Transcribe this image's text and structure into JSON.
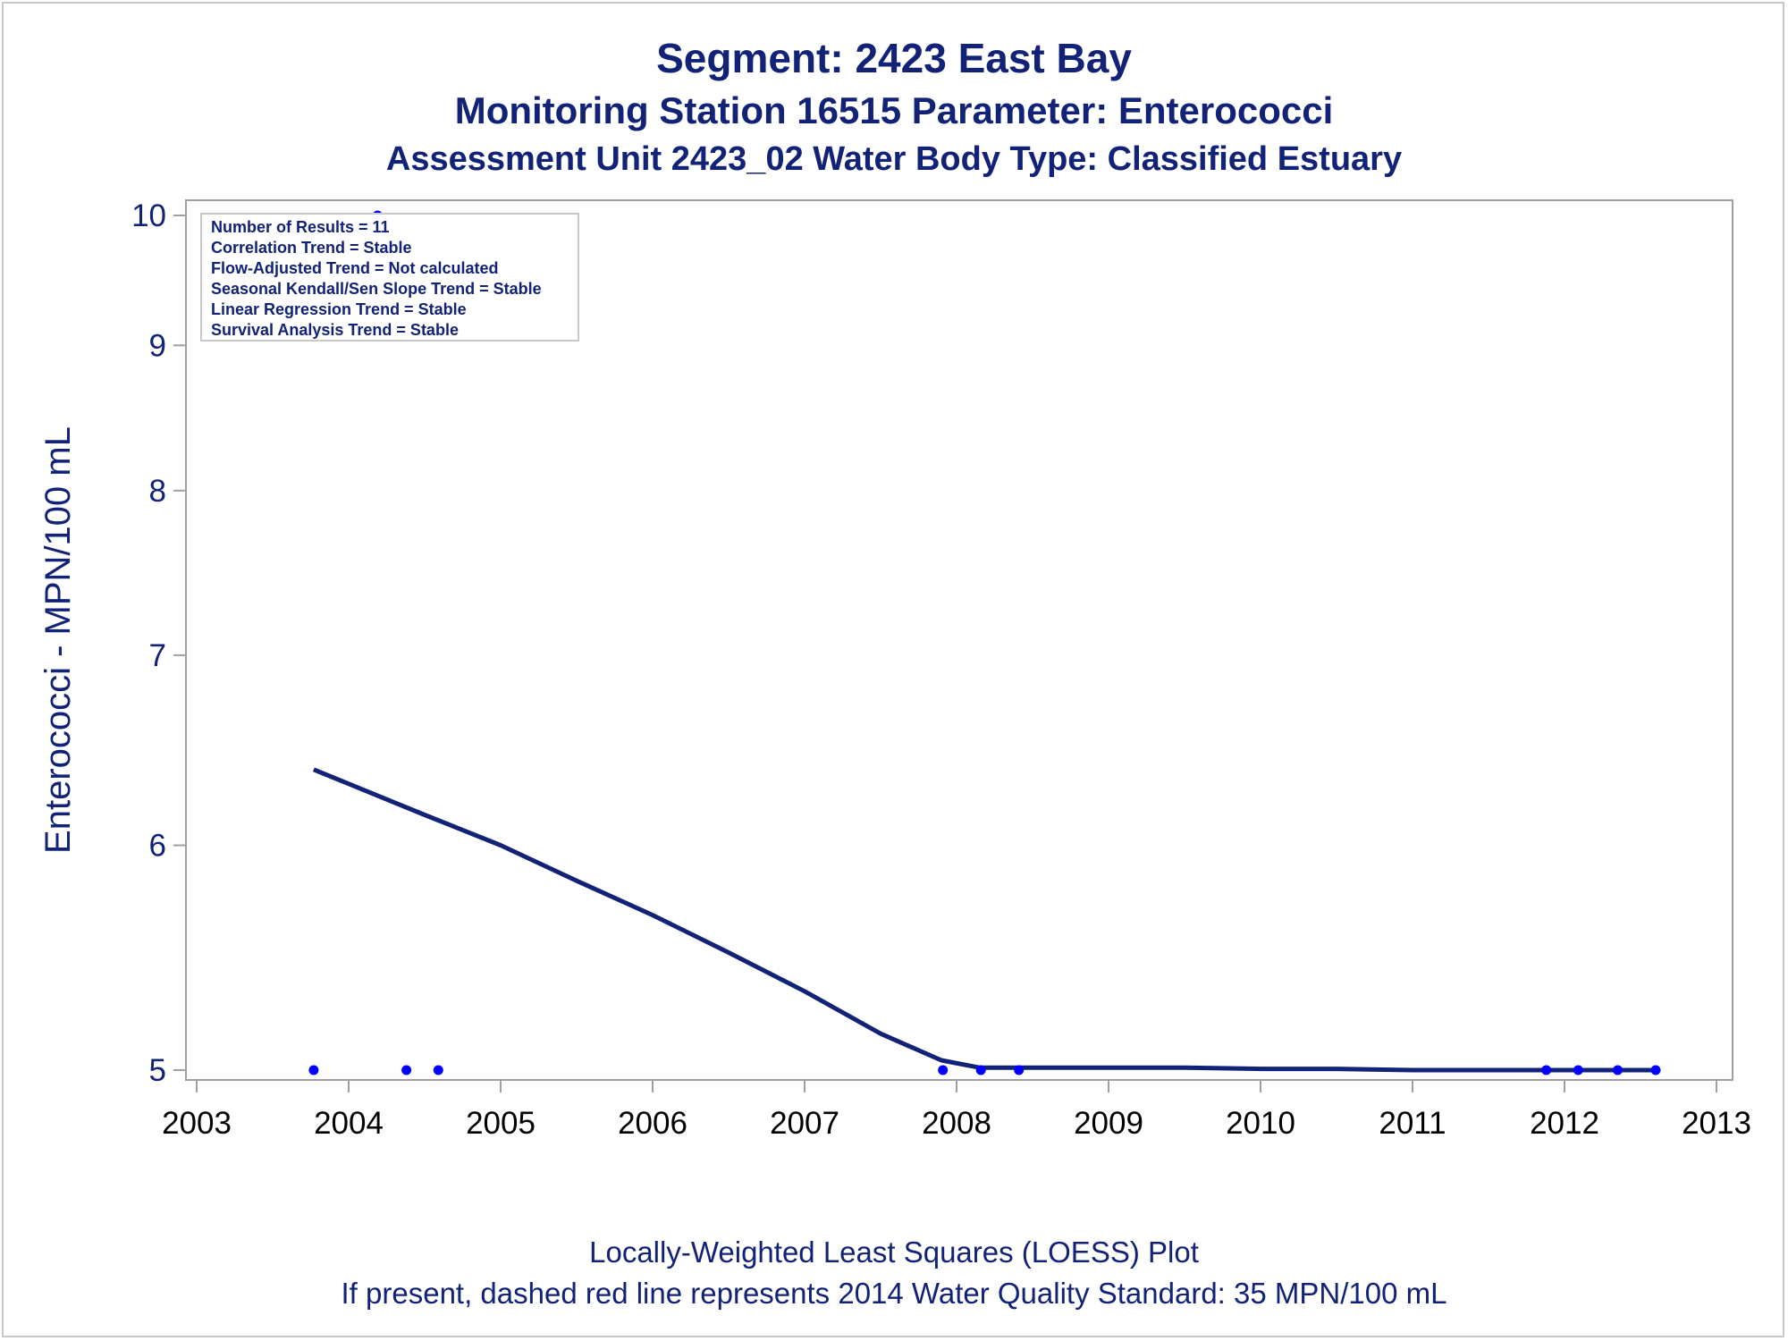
{
  "titles": {
    "line1": "Segment: 2423  East Bay",
    "line2": "Monitoring Station 16515 Parameter: Enterococci",
    "line3": "Assessment Unit 2423_02   Water Body Type: Classified Estuary"
  },
  "footnotes": {
    "line1": "Locally-Weighted Least Squares (LOESS) Plot",
    "line2": "If present, dashed red line represents 2014 Water Quality Standard: 35 MPN/100 mL"
  },
  "inset": [
    "Number of Results = 11",
    "Correlation Trend = Stable",
    "Flow-Adjusted Trend = Not calculated",
    "Seasonal Kendall/Sen Slope Trend = Stable",
    "Linear Regression Trend = Stable",
    "Survival Analysis Trend = Stable"
  ],
  "chart_data": {
    "type": "scatter",
    "title": "Segment: 2423  East Bay",
    "xlabel": "",
    "ylabel": "Enterococci - MPN/100 mL",
    "y_scale": "log",
    "xlim": [
      2003,
      2013
    ],
    "ylim": [
      4.93,
      10
    ],
    "x_ticks": [
      2003,
      2004,
      2005,
      2006,
      2007,
      2008,
      2009,
      2010,
      2011,
      2012,
      2013
    ],
    "y_ticks": [
      5,
      6,
      7,
      8,
      9,
      10
    ],
    "series": [
      {
        "kind": "points",
        "color": "#0000ff",
        "x": [
          2003.77,
          2004.19,
          2004.38,
          2004.59,
          2007.91,
          2008.16,
          2008.41,
          2011.88,
          2012.09,
          2012.35,
          2012.6
        ],
        "y": [
          5,
          10,
          5,
          5,
          5,
          5,
          5,
          5,
          5,
          5,
          5
        ]
      },
      {
        "kind": "line",
        "color": "#112277",
        "x": [
          2003.77,
          2004.5,
          2005.0,
          2005.5,
          2006.0,
          2006.5,
          2007.0,
          2007.5,
          2007.9,
          2008.15,
          2008.5,
          2009.0,
          2009.5,
          2010.0,
          2010.5,
          2011.0,
          2011.5,
          2012.0,
          2012.6
        ],
        "y": [
          6.38,
          6.15,
          6.0,
          5.83,
          5.67,
          5.5,
          5.33,
          5.15,
          5.04,
          5.01,
          5.01,
          5.01,
          5.01,
          5.005,
          5.005,
          5.0,
          5.0,
          5.0,
          5.0
        ]
      }
    ]
  }
}
